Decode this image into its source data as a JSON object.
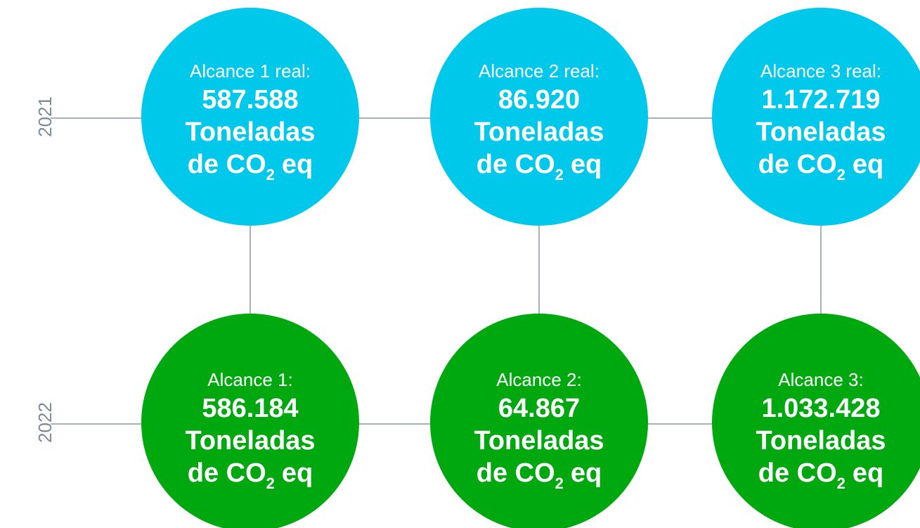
{
  "rows": [
    {
      "year": "2021",
      "circles": [
        {
          "label": "Alcance 1 real:",
          "value": "587.588",
          "unit": "Toneladas",
          "gas": "de CO",
          "sub": "2",
          "eq": "eq"
        },
        {
          "label": "Alcance 2 real:",
          "value": "86.920",
          "unit": "Toneladas",
          "gas": "de CO",
          "sub": "2",
          "eq": "eq"
        },
        {
          "label": "Alcance 3 real:",
          "value": "1.172.719",
          "unit": "Toneladas",
          "gas": "de CO",
          "sub": "2",
          "eq": "eq"
        }
      ]
    },
    {
      "year": "2022",
      "circles": [
        {
          "label": "Alcance 1:",
          "value": "586.184",
          "unit": "Toneladas",
          "gas": "de CO",
          "sub": "2",
          "eq": "eq"
        },
        {
          "label": "Alcance 2:",
          "value": "64.867",
          "unit": "Toneladas",
          "gas": "de CO",
          "sub": "2",
          "eq": "eq"
        },
        {
          "label": "Alcance 3:",
          "value": "1.033.428",
          "unit": "Toneladas",
          "gas": "de CO",
          "sub": "2",
          "eq": "eq"
        }
      ]
    }
  ]
}
